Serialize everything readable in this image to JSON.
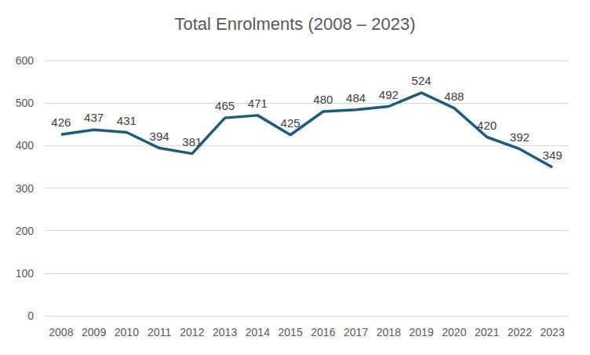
{
  "chart_data": {
    "type": "line",
    "title": "Total Enrolments (2008 – 2023)",
    "categories": [
      "2008",
      "2009",
      "2010",
      "2011",
      "2012",
      "2013",
      "2014",
      "2015",
      "2016",
      "2017",
      "2018",
      "2019",
      "2020",
      "2021",
      "2022",
      "2023"
    ],
    "values": [
      426,
      437,
      431,
      394,
      381,
      465,
      471,
      425,
      480,
      484,
      492,
      524,
      488,
      420,
      392,
      349
    ],
    "color": "#1f5c7a",
    "ylim": [
      0,
      600
    ],
    "yticks": [
      0,
      100,
      200,
      300,
      400,
      500,
      600
    ],
    "grid": true,
    "data_labels": true
  }
}
